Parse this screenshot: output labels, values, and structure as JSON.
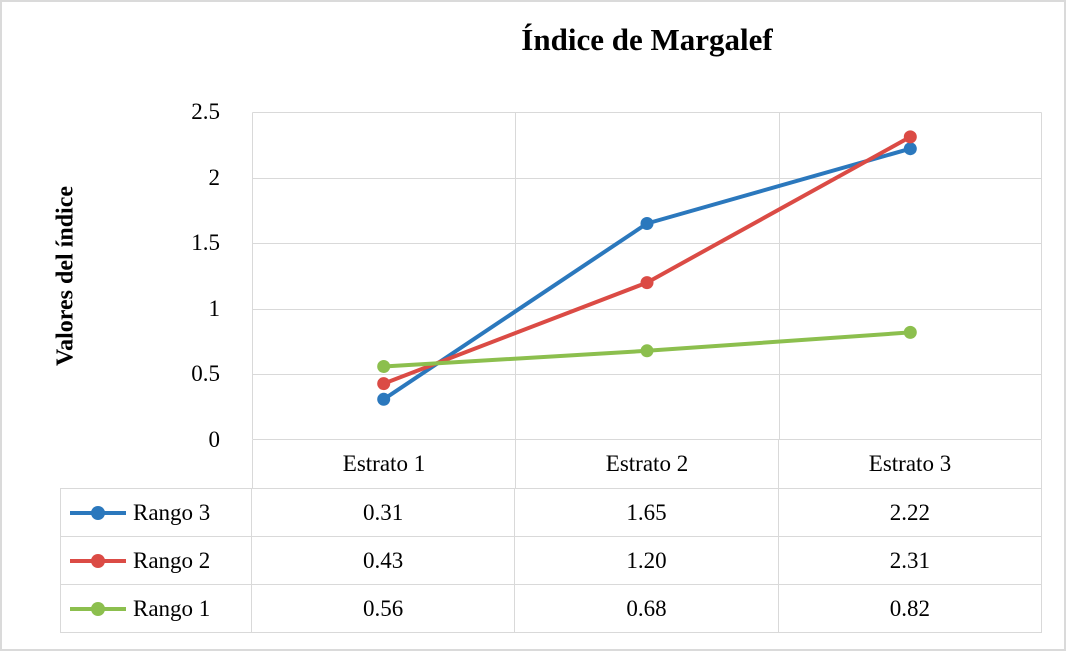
{
  "chart_data": {
    "type": "line",
    "title": "Índice de Margalef",
    "ylabel": "Valores del índice",
    "xlabel": "",
    "categories": [
      "Estrato 1",
      "Estrato 2",
      "Estrato 3"
    ],
    "series": [
      {
        "name": "Rango 3",
        "color": "#2B78BD",
        "values": [
          0.31,
          1.65,
          2.22
        ],
        "display_values": [
          "0.31",
          "1.65",
          "2.22"
        ]
      },
      {
        "name": "Rango 2",
        "color": "#DB4B45",
        "values": [
          0.43,
          1.2,
          2.31
        ],
        "display_values": [
          "0.43",
          "1.20",
          "2.31"
        ]
      },
      {
        "name": "Rango 1",
        "color": "#8CBF4E",
        "values": [
          0.56,
          0.68,
          0.82
        ],
        "display_values": [
          "0.56",
          "0.68",
          "0.82"
        ]
      }
    ],
    "ylim": [
      0,
      2.5
    ],
    "ytick_labels": [
      "2.5",
      "2",
      "1.5",
      "1",
      "0.5",
      "0"
    ],
    "grid": true,
    "legend_position": "table-left",
    "marker_style": "circle"
  },
  "colors": {
    "grid": "#D9D9D9",
    "frame_border": "#DADADA",
    "text": "#000000",
    "background": "#FFFFFF"
  }
}
